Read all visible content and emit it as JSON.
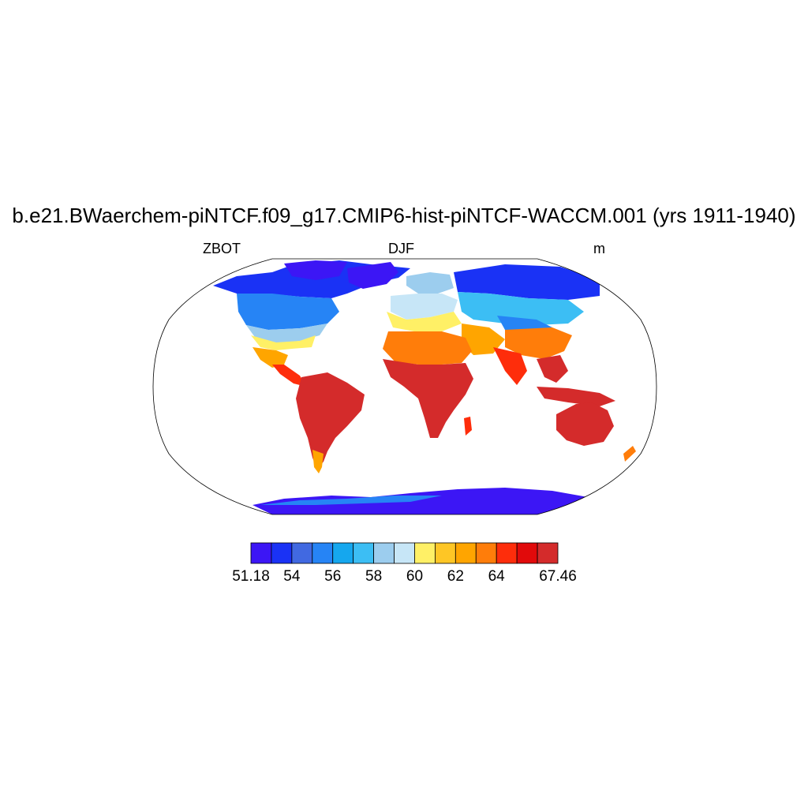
{
  "title": "b.e21.BWaerchem-piNTCF.f09_g17.CMIP6-hist-piNTCF-WACCM.001 (yrs 1911-1940)",
  "subtitle_left": "ZBOT",
  "subtitle_center": "DJF",
  "subtitle_right": "m",
  "colorbar": {
    "colors": [
      "#3c16f5",
      "#1a32f5",
      "#4169e1",
      "#2684f5",
      "#15a7ee",
      "#3cbef4",
      "#9ccdee",
      "#c7e6f7",
      "#fff066",
      "#fec625",
      "#ffa500",
      "#ff7d0a",
      "#fe2d0b",
      "#e10a0b",
      "#d42b2b"
    ],
    "labels": [
      "51.18",
      "54",
      "56",
      "58",
      "60",
      "62",
      "64",
      "67.46"
    ],
    "label_positions": [
      0,
      2,
      4,
      6,
      8,
      10,
      12,
      15
    ]
  },
  "map_data": {
    "projection": "Robinson",
    "variable": "ZBOT",
    "season": "DJF",
    "units": "m",
    "min": 51.18,
    "max": 67.46,
    "regions": [
      {
        "name": "Antarctica",
        "level": 1
      },
      {
        "name": "Greenland",
        "level": 0
      },
      {
        "name": "Arctic Canada",
        "level": 0
      },
      {
        "name": "Northern Russia",
        "level": 0
      },
      {
        "name": "Central Asia",
        "level": 6
      },
      {
        "name": "Africa",
        "level": 14
      },
      {
        "name": "South America",
        "level": 14
      },
      {
        "name": "Australia",
        "level": 14
      },
      {
        "name": "Southeast Asia",
        "level": 14
      },
      {
        "name": "Europe",
        "level": 6
      }
    ]
  }
}
